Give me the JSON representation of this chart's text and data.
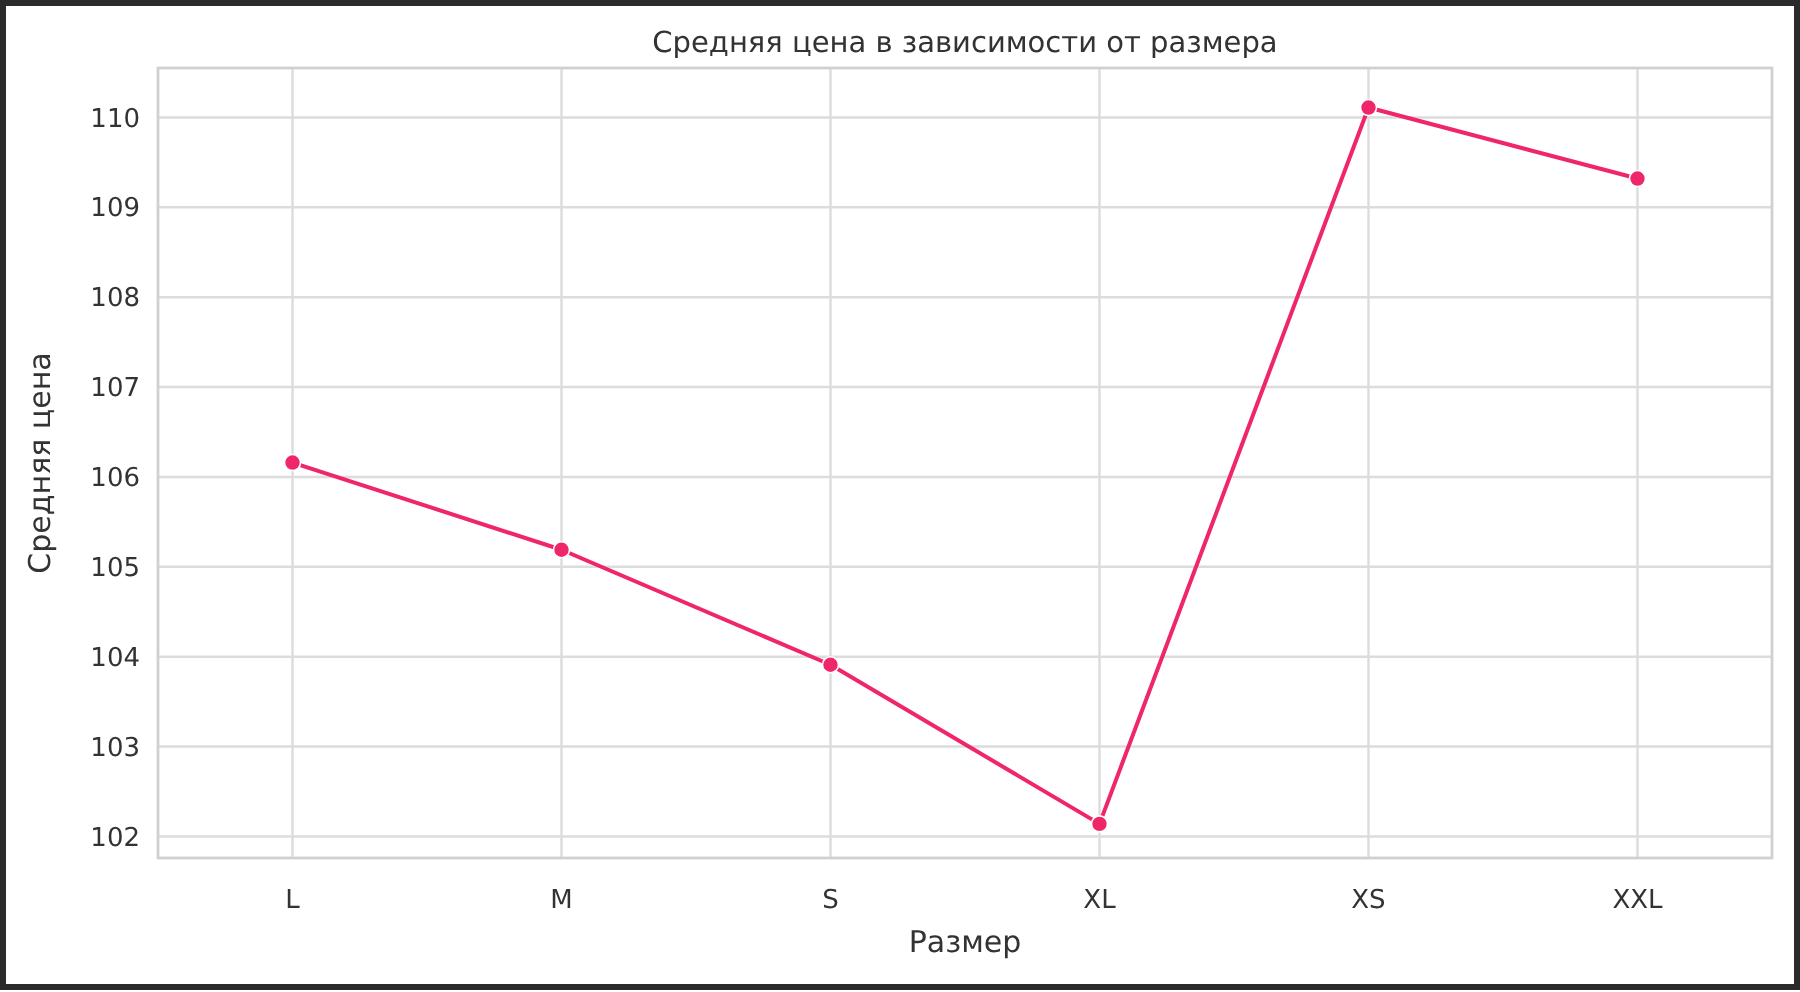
{
  "chart_data": {
    "type": "line",
    "title": "Средняя цена в зависимости от размера",
    "xlabel": "Размер",
    "ylabel": "Средняя цена",
    "categories": [
      "L",
      "M",
      "S",
      "XL",
      "XS",
      "XXL"
    ],
    "series": [
      {
        "color": "#ef2768",
        "values": [
          106.16,
          105.19,
          103.91,
          102.14,
          110.11,
          109.32
        ]
      }
    ],
    "ylim": [
      101.76,
      110.55
    ],
    "yticks": [
      102,
      103,
      104,
      105,
      106,
      107,
      108,
      109,
      110
    ],
    "grid": true,
    "marker": "circle",
    "line_style": "solid"
  }
}
